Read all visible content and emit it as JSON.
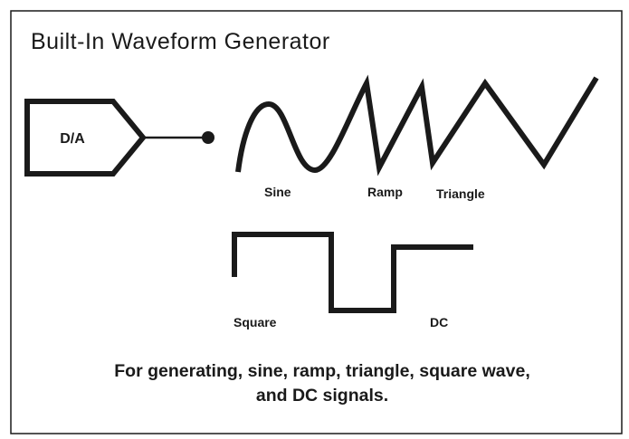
{
  "title": "Built-In Waveform Generator",
  "converter": {
    "label": "D/A"
  },
  "waveforms": {
    "sine": "Sine",
    "ramp": "Ramp",
    "triangle": "Triangle",
    "square": "Square",
    "dc": "DC"
  },
  "caption": {
    "line1": "For generating, sine, ramp, triangle, square wave,",
    "line2": "and DC signals."
  }
}
